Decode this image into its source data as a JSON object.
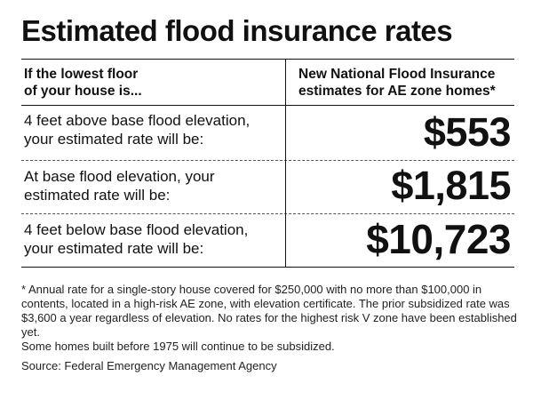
{
  "title": "Estimated flood insurance rates",
  "chart_data": {
    "type": "table",
    "columns": [
      "If the lowest floor\nof your house is...",
      "New National Flood Insurance\nestimates for AE zone homes*"
    ],
    "rows": [
      {
        "condition": "4 feet above base flood elevation,\nyour estimated rate will be:",
        "rate": "$553",
        "value": 553
      },
      {
        "condition": "At base flood elevation, your\nestimated rate will be:",
        "rate": "$1,815",
        "value": 1815
      },
      {
        "condition": "4 feet below base flood elevation,\nyour estimated rate will be:",
        "rate": "$10,723",
        "value": 10723
      }
    ]
  },
  "footnote": "* Annual rate for a single-story house covered for $250,000 with no more than $100,000 in contents, located in a high-risk AE zone, with elevation certificate. The prior subsidized rate was $3,600 a year regardless of elevation. No rates for the highest risk V zone have been established yet.",
  "note": "Some homes built before 1975 will continue to be subsidized.",
  "source": "Source: Federal Emergency Management Agency"
}
